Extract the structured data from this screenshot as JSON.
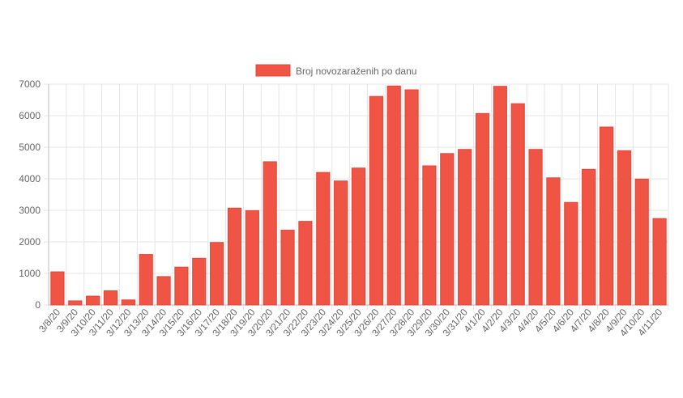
{
  "chart_data": {
    "type": "bar",
    "legend": {
      "label": "Broj novozaraženih po danu",
      "position": "top"
    },
    "colors": {
      "bar_fill": "#f05445",
      "bar_stroke": "#e0463a",
      "grid": "#e5e5e5"
    },
    "ylim": [
      0,
      7000
    ],
    "yticks": [
      0,
      1000,
      2000,
      3000,
      4000,
      5000,
      6000,
      7000
    ],
    "grid": true,
    "categories": [
      "3/8/20",
      "3/9/20",
      "3/10/20",
      "3/11/20",
      "3/12/20",
      "3/13/20",
      "3/14/20",
      "3/15/20",
      "3/16/20",
      "3/17/20",
      "3/18/20",
      "3/19/20",
      "3/20/20",
      "3/21/20",
      "3/22/20",
      "3/23/20",
      "3/24/20",
      "3/25/20",
      "3/26/20",
      "3/27/20",
      "3/28/20",
      "3/29/20",
      "3/30/20",
      "3/31/20",
      "4/1/20",
      "4/2/20",
      "4/3/20",
      "4/4/20",
      "4/5/20",
      "4/6/20",
      "4/7/20",
      "4/8/20",
      "4/9/20",
      "4/10/20",
      "4/11/20"
    ],
    "values": [
      1050,
      130,
      280,
      450,
      160,
      1600,
      900,
      1200,
      1480,
      1980,
      3070,
      2990,
      4540,
      2370,
      2650,
      4200,
      3930,
      4340,
      6610,
      6940,
      6820,
      4410,
      4800,
      4930,
      6070,
      6930,
      6380,
      4930,
      4030,
      3250,
      4300,
      5640,
      4890,
      3990,
      2740
    ]
  }
}
